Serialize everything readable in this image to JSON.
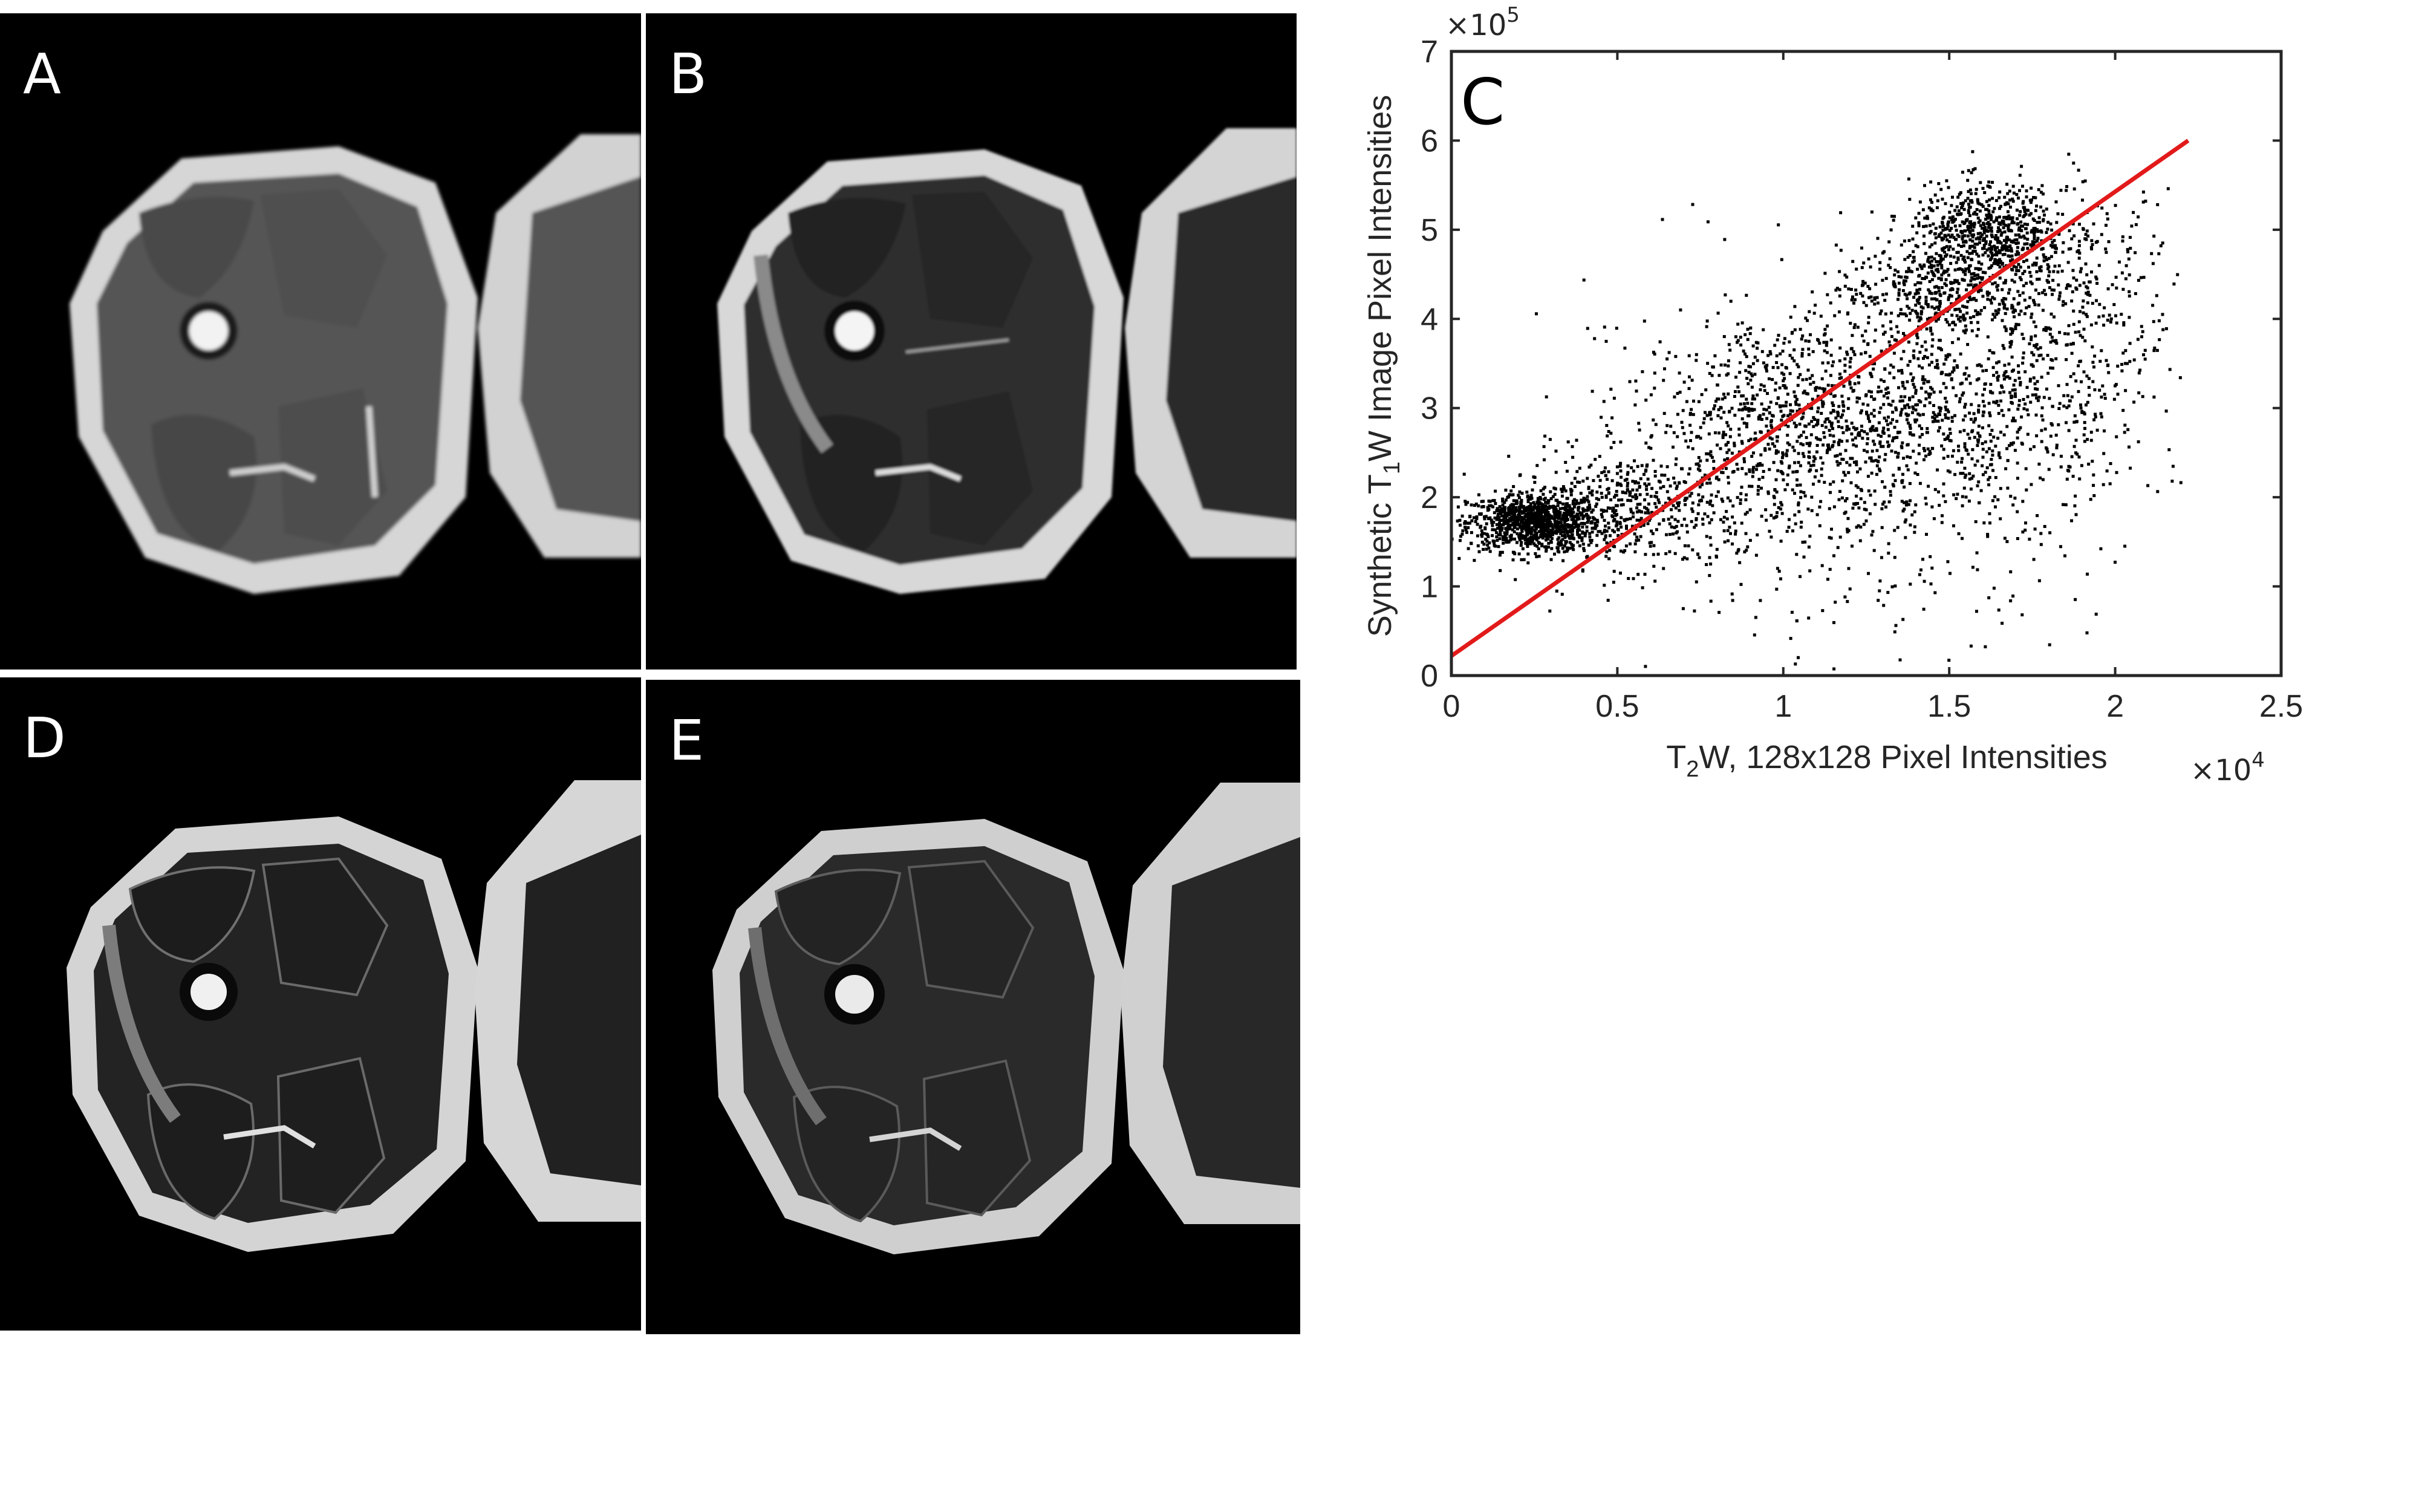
{
  "figure": {
    "panels": [
      {
        "id": "panel-a",
        "letter": "A",
        "image_note": "Axial thigh MRI, low-resolution T1-weighted"
      },
      {
        "id": "panel-b",
        "letter": "B",
        "image_note": "Axial thigh MRI, synthetic T1-weighted"
      },
      {
        "id": "panel-d",
        "letter": "D",
        "image_note": "Axial thigh MRI, T2-weighted"
      },
      {
        "id": "panel-e",
        "letter": "E",
        "image_note": "Axial thigh MRI, high-resolution T1-weighted"
      }
    ]
  },
  "chart_data": {
    "panel_letter": "C",
    "type": "scatter",
    "xlabel_parts": [
      "T",
      "2",
      "W, 128x128 Pixel Intensities"
    ],
    "ylabel_parts": [
      "Synthetic T",
      "1",
      "W Image Pixel Intensities"
    ],
    "x_multiplier": {
      "base": "×10",
      "exp": "4"
    },
    "y_multiplier": {
      "base": "×10",
      "exp": "5"
    },
    "xlim": [
      0,
      2.5
    ],
    "ylim": [
      0,
      7
    ],
    "x_scale_factor": 10000,
    "y_scale_factor": 100000,
    "xticks": [
      "0",
      "0.5",
      "1",
      "1.5",
      "2",
      "2.5"
    ],
    "yticks": [
      "0",
      "1",
      "2",
      "3",
      "4",
      "5",
      "6",
      "7"
    ],
    "grid": false,
    "fit_line": {
      "color": "#e21a1a",
      "x": [
        0,
        2.22
      ],
      "y": [
        0.22,
        6.0
      ]
    },
    "point_color": "#000000",
    "clusters": [
      {
        "cx": 0.25,
        "cy": 1.72,
        "sx": 0.1,
        "sy": 0.16,
        "n": 1000
      },
      {
        "cx": 0.55,
        "cy": 1.85,
        "sx": 0.17,
        "sy": 0.32,
        "n": 450
      },
      {
        "cx": 1.0,
        "cy": 2.9,
        "sx": 0.22,
        "sy": 0.55,
        "n": 650
      },
      {
        "cx": 1.45,
        "cy": 4.3,
        "sx": 0.14,
        "sy": 0.25,
        "n": 350
      },
      {
        "cx": 1.62,
        "cy": 4.95,
        "sx": 0.12,
        "sy": 0.28,
        "n": 700
      },
      {
        "cx": 1.6,
        "cy": 3.1,
        "sx": 0.25,
        "sy": 0.65,
        "n": 700
      },
      {
        "cx": 1.2,
        "cy": 2.4,
        "sx": 0.38,
        "sy": 0.95,
        "n": 700
      },
      {
        "cx": 1.9,
        "cy": 4.3,
        "sx": 0.14,
        "sy": 0.55,
        "n": 250
      }
    ]
  }
}
